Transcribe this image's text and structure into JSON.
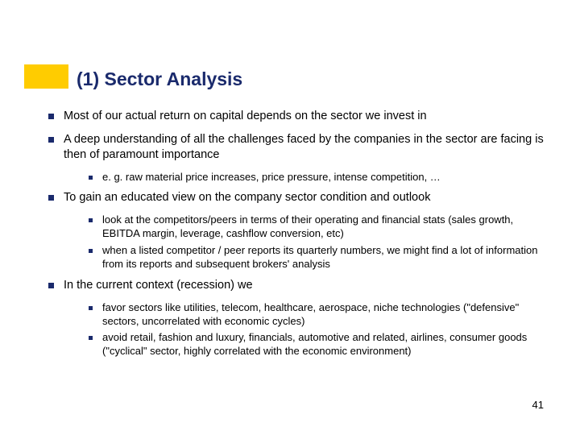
{
  "accent_color": "#ffcc00",
  "title_color": "#1a2a6c",
  "bullet_color": "#1a2a6c",
  "title": "(1) Sector Analysis",
  "page_number": "41",
  "items": [
    {
      "text": "Most of our actual return on capital depends on the sector we invest in",
      "children": []
    },
    {
      "text": "A deep understanding of all the challenges faced by the companies in the sector are facing is then of paramount importance",
      "children": [
        "e. g. raw material price increases, price pressure, intense competition, …"
      ]
    },
    {
      "text": "To gain an educated view on the company sector condition and outlook",
      "children": [
        "look at the competitors/peers in terms of their operating and financial stats (sales growth, EBITDA margin, leverage, cashflow conversion, etc)",
        "when a listed competitor / peer reports its quarterly numbers, we might find a lot of information from its reports and subsequent brokers' analysis"
      ]
    },
    {
      "text": "In the current context (recession) we",
      "children": [
        "favor sectors like utilities, telecom, healthcare, aerospace, niche technologies (\"defensive\" sectors, uncorrelated with economic cycles)",
        "avoid retail, fashion and luxury, financials, automotive and related, airlines, consumer goods (\"cyclical\" sector, highly correlated with the economic environment)"
      ]
    }
  ]
}
